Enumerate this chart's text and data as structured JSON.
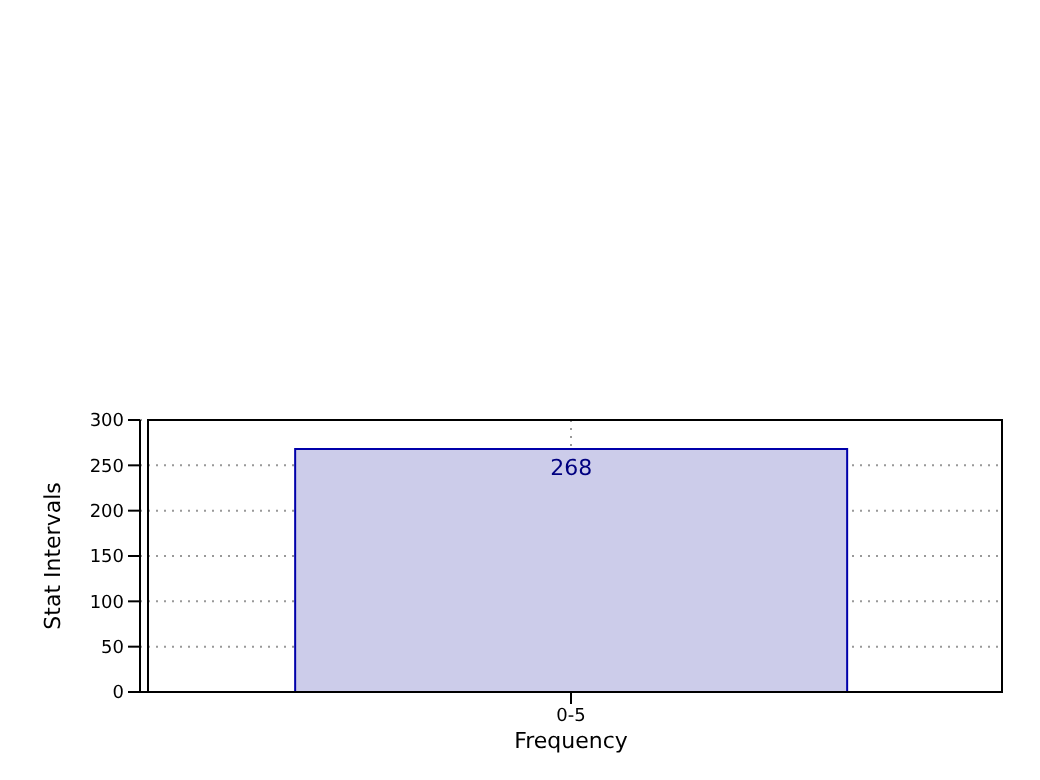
{
  "chart_data": {
    "type": "bar",
    "xlabel": "Frequency",
    "ylabel": "Stat Intervals",
    "categories": [
      "0-5"
    ],
    "series": [
      {
        "color": "#ccccea",
        "values": [
          268
        ]
      }
    ],
    "ylim": [
      0,
      300
    ],
    "yticks": [
      0,
      50,
      100,
      150,
      200,
      250,
      300
    ],
    "grid": true,
    "data_labels": true
  }
}
